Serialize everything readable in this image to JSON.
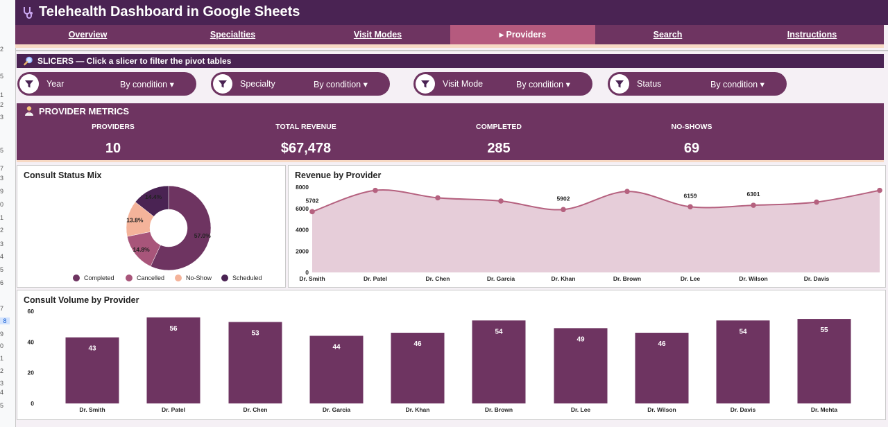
{
  "app": {
    "title": "Telehealth Dashboard in Google Sheets"
  },
  "nav": {
    "tabs": [
      {
        "label": "Overview"
      },
      {
        "label": "Specialties"
      },
      {
        "label": "Visit Modes"
      },
      {
        "label": "▸ Providers"
      },
      {
        "label": "Search"
      },
      {
        "label": "Instructions"
      }
    ]
  },
  "row_numbers": [
    "",
    "2",
    "",
    "5",
    "",
    "1",
    "2",
    "3",
    "",
    "5",
    "7",
    "3",
    "9",
    "0",
    "1",
    "2",
    "3",
    "4",
    "5",
    "6",
    "7",
    "8",
    "9",
    "0",
    "1",
    "2",
    "3",
    "4",
    "5"
  ],
  "slicers": {
    "header": "SLICERS — Click a slicer to filter the pivot tables",
    "items": [
      {
        "label": "Year",
        "condition": "By condition ▾"
      },
      {
        "label": "Specialty",
        "condition": "By condition ▾"
      },
      {
        "label": "Visit Mode",
        "condition": "By condition ▾"
      },
      {
        "label": "Status",
        "condition": "By condition ▾"
      }
    ]
  },
  "metrics": {
    "title": "PROVIDER METRICS",
    "items": [
      {
        "label": "PROVIDERS",
        "value": "10"
      },
      {
        "label": "TOTAL REVENUE",
        "value": "$67,478"
      },
      {
        "label": "COMPLETED",
        "value": "285"
      },
      {
        "label": "NO-SHOWS",
        "value": "69"
      }
    ]
  },
  "colors": {
    "header": "#4a2353",
    "nav": "#6e3461",
    "active_tab": "#b55a7e",
    "accent_line": "#f7d9c4",
    "completed": "#6e3461",
    "cancelled": "#a8557a",
    "noshow": "#f4b39a",
    "scheduled": "#4a2353"
  },
  "chart_data": [
    {
      "type": "pie",
      "title": "Consult Status Mix",
      "donut": true,
      "legend": "bottom",
      "categories": [
        "Completed",
        "Cancelled",
        "No-Show",
        "Scheduled"
      ],
      "values": [
        57.0,
        14.8,
        13.8,
        14.4
      ],
      "labels": [
        "57.0%",
        "14.8%",
        "13.8%",
        "14.4%"
      ],
      "colors": [
        "#6e3461",
        "#a8557a",
        "#f4b39a",
        "#4a2353"
      ]
    },
    {
      "type": "area",
      "title": "Revenue by Provider",
      "categories": [
        "Dr. Smith",
        "Dr. Patel",
        "Dr. Chen",
        "Dr. Garcia",
        "Dr. Khan",
        "Dr. Brown",
        "Dr. Lee",
        "Dr. Wilson",
        "Dr. Davis",
        ""
      ],
      "values": [
        5702,
        7700,
        7000,
        6700,
        5902,
        7600,
        6159,
        6301,
        6600,
        7700
      ],
      "point_labels": [
        "5702",
        "",
        "",
        "",
        "5902",
        "",
        "6159",
        "6301",
        "",
        ""
      ],
      "yticks": [
        0,
        2000,
        4000,
        6000,
        8000
      ],
      "ylim": [
        0,
        8000
      ],
      "grid": false
    },
    {
      "type": "bar",
      "title": "Consult Volume by Provider",
      "categories": [
        "Dr. Smith",
        "Dr. Patel",
        "Dr. Chen",
        "Dr. Garcia",
        "Dr. Khan",
        "Dr. Brown",
        "Dr. Lee",
        "Dr. Wilson",
        "Dr. Davis",
        "Dr. Mehta"
      ],
      "values": [
        43,
        56,
        53,
        44,
        46,
        54,
        49,
        46,
        54,
        55
      ],
      "yticks": [
        0,
        20,
        40,
        60
      ],
      "ylim": [
        0,
        60
      ],
      "grid": false
    }
  ]
}
